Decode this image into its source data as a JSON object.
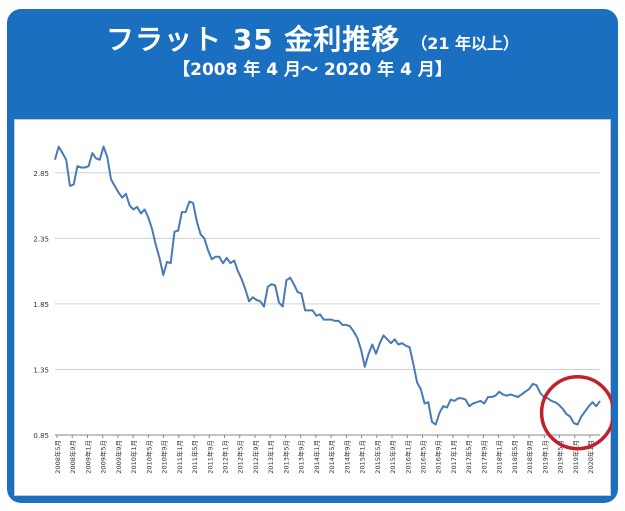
{
  "header": {
    "title": "フラット 35 金利推移",
    "title_suffix": "（21 年以上）",
    "period": "【2008 年 4 月～ 2020 年 4 月】"
  },
  "colors": {
    "frame": "#1b6fc0",
    "line": "#4a7ab5",
    "gridline": "#d0d0d0",
    "highlight_circle": "#c0212a"
  },
  "chart_data": {
    "type": "line",
    "title": "フラット 35 金利推移",
    "xlabel": "",
    "ylabel": "",
    "ylim": [
      0.85,
      3.1
    ],
    "yticks": [
      0.85,
      1.35,
      1.85,
      2.35,
      2.85
    ],
    "ytick_labels": [
      "0.85",
      "1.35",
      "1.85",
      "2.35",
      "2.85"
    ],
    "grid": true,
    "xtick_labels": [
      "2008年5月",
      "2008年9月",
      "2009年1月",
      "2009年5月",
      "2009年9月",
      "2010年1月",
      "2010年5月",
      "2010年9月",
      "2011年1月",
      "2011年5月",
      "2011年9月",
      "2012年1月",
      "2012年5月",
      "2012年9月",
      "2013年1月",
      "2013年5月",
      "2013年9月",
      "2014年1月",
      "2014年5月",
      "2014年9月",
      "2015年1月",
      "2015年5月",
      "2015年9月",
      "2016年1月",
      "2016年5月",
      "2016年9月",
      "2017年1月",
      "2017年5月",
      "2017年9月",
      "2018年1月",
      "2018年5月",
      "2018年9月",
      "2019年1月",
      "2019年5月",
      "2019年9月",
      "2020年1月"
    ],
    "x_start": "2008年5月",
    "x_end": "2020年4月",
    "values": [
      2.95,
      3.05,
      3.0,
      2.95,
      2.75,
      2.76,
      2.9,
      2.89,
      2.89,
      2.9,
      3.0,
      2.96,
      2.95,
      3.05,
      2.97,
      2.8,
      2.75,
      2.7,
      2.66,
      2.69,
      2.6,
      2.57,
      2.59,
      2.54,
      2.57,
      2.51,
      2.42,
      2.3,
      2.2,
      2.07,
      2.17,
      2.16,
      2.4,
      2.41,
      2.55,
      2.55,
      2.63,
      2.62,
      2.48,
      2.38,
      2.35,
      2.26,
      2.19,
      2.21,
      2.21,
      2.16,
      2.2,
      2.16,
      2.18,
      2.1,
      2.04,
      1.96,
      1.87,
      1.9,
      1.88,
      1.87,
      1.83,
      1.98,
      2.0,
      1.99,
      1.86,
      1.83,
      2.03,
      2.05,
      2.0,
      1.94,
      1.93,
      1.8,
      1.8,
      1.8,
      1.76,
      1.77,
      1.73,
      1.73,
      1.73,
      1.72,
      1.72,
      1.69,
      1.69,
      1.68,
      1.64,
      1.59,
      1.5,
      1.37,
      1.47,
      1.54,
      1.47,
      1.55,
      1.61,
      1.58,
      1.55,
      1.58,
      1.54,
      1.55,
      1.53,
      1.52,
      1.39,
      1.25,
      1.2,
      1.09,
      1.1,
      0.95,
      0.93,
      1.02,
      1.07,
      1.06,
      1.12,
      1.11,
      1.13,
      1.13,
      1.12,
      1.07,
      1.09,
      1.1,
      1.11,
      1.09,
      1.14,
      1.14,
      1.15,
      1.18,
      1.16,
      1.15,
      1.16,
      1.15,
      1.14,
      1.16,
      1.18,
      1.2,
      1.24,
      1.23,
      1.17,
      1.14,
      1.13,
      1.11,
      1.1,
      1.08,
      1.05,
      1.01,
      0.99,
      0.94,
      0.93,
      0.99,
      1.03,
      1.07,
      1.1,
      1.07,
      1.11
    ],
    "annotation": "highlight circle around 2019–2020 low"
  }
}
